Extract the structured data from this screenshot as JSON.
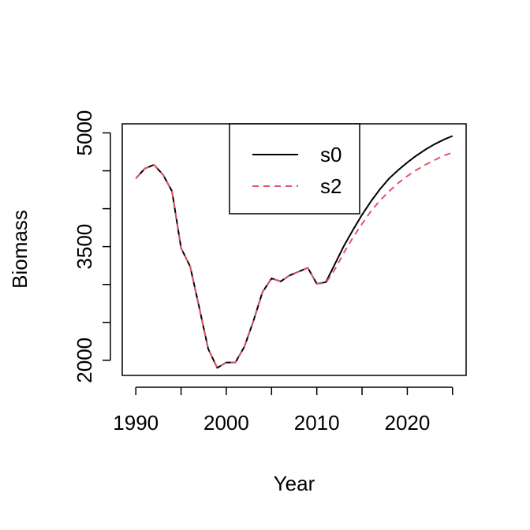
{
  "chart_data": {
    "type": "line",
    "xlabel": "Year",
    "ylabel": "Biomass",
    "xlim": [
      1988.5,
      2026.5
    ],
    "ylim": [
      1800,
      5120
    ],
    "x_ticks": [
      1990,
      2000,
      2010,
      2020
    ],
    "y_ticks": [
      2000,
      2500,
      3000,
      3500,
      4000,
      4500,
      5000
    ],
    "y_tick_labels": [
      "2000",
      "",
      "",
      "3500",
      "",
      "",
      "5000"
    ],
    "legend_position": "top-center",
    "grid": false,
    "series": [
      {
        "name": "s0",
        "color": "#000000",
        "dash": "solid",
        "x": [
          1990,
          1991,
          1992,
          1993,
          1994,
          1995,
          1996,
          1997,
          1998,
          1999,
          2000,
          2001,
          2002,
          2003,
          2004,
          2005,
          2006,
          2007,
          2008,
          2009,
          2010,
          2011,
          2012,
          2013,
          2014,
          2015,
          2016,
          2017,
          2018,
          2019,
          2020,
          2021,
          2022,
          2023,
          2024,
          2025
        ],
        "values": [
          4400,
          4530,
          4580,
          4450,
          4230,
          3480,
          3240,
          2700,
          2150,
          1900,
          1970,
          1970,
          2180,
          2520,
          2900,
          3080,
          3040,
          3120,
          3170,
          3220,
          3010,
          3030,
          3270,
          3510,
          3720,
          3920,
          4100,
          4260,
          4400,
          4510,
          4610,
          4700,
          4780,
          4850,
          4910,
          4960
        ]
      },
      {
        "name": "s2",
        "color": "#DF536B",
        "dash": "dashed",
        "x": [
          1990,
          1991,
          1992,
          1993,
          1994,
          1995,
          1996,
          1997,
          1998,
          1999,
          2000,
          2001,
          2002,
          2003,
          2004,
          2005,
          2006,
          2007,
          2008,
          2009,
          2010,
          2011,
          2012,
          2013,
          2014,
          2015,
          2016,
          2017,
          2018,
          2019,
          2020,
          2021,
          2022,
          2023,
          2024,
          2025
        ],
        "values": [
          4400,
          4530,
          4580,
          4450,
          4230,
          3480,
          3240,
          2700,
          2150,
          1900,
          1970,
          1970,
          2180,
          2520,
          2900,
          3080,
          3040,
          3120,
          3170,
          3220,
          3010,
          3020,
          3200,
          3420,
          3620,
          3800,
          3970,
          4110,
          4230,
          4340,
          4430,
          4510,
          4580,
          4640,
          4700,
          4740
        ]
      }
    ]
  }
}
